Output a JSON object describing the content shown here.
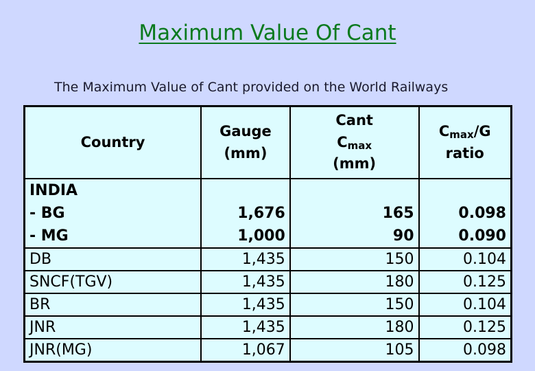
{
  "title": "Maximum Value Of Cant",
  "subtitle": "The Maximum Value of Cant provided on the World Railways",
  "headers": {
    "country": "Country",
    "gauge_line1": "Gauge",
    "gauge_line2": "(mm)",
    "cant_line1": "Cant",
    "cant_c": "C",
    "cant_sub": "max",
    "cant_line3": "(mm)",
    "ratio_c": "C",
    "ratio_sub": "max",
    "ratio_rest": "/G",
    "ratio_line2": "ratio"
  },
  "india": {
    "country": [
      "INDIA",
      "- BG",
      "- MG"
    ],
    "gauge": [
      "",
      "1,676",
      "1,000"
    ],
    "cant": [
      "",
      "165",
      "90"
    ],
    "ratio": [
      "",
      "0.098",
      "0.090"
    ]
  },
  "rows": [
    {
      "country": "DB",
      "gauge": "1,435",
      "cant": "150",
      "ratio": "0.104"
    },
    {
      "country": "SNCF(TGV)",
      "gauge": "1,435",
      "cant": "180",
      "ratio": "0.125"
    },
    {
      "country": "BR",
      "gauge": "1,435",
      "cant": "150",
      "ratio": "0.104"
    },
    {
      "country": "JNR",
      "gauge": "1,435",
      "cant": "180",
      "ratio": "0.125"
    },
    {
      "country": "JNR(MG)",
      "gauge": "1,067",
      "cant": "105",
      "ratio": "0.098"
    }
  ]
}
